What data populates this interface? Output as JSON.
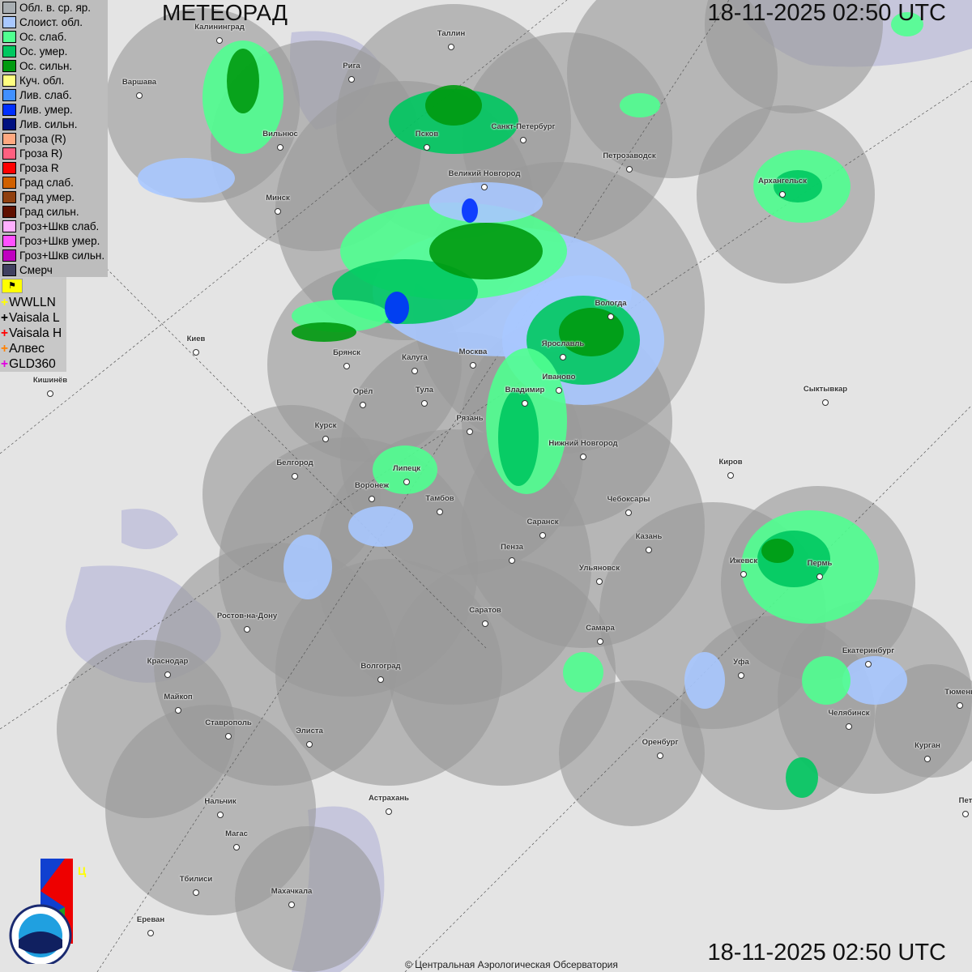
{
  "header": {
    "title": "МЕТЕОРАД",
    "time_top": "18-11-2025  02:50 UTC",
    "time_bottom": "18-11-2025  02:50 UTC"
  },
  "legend": [
    {
      "label": "Обл. в. ср. яр.",
      "color": "#a8aeb2"
    },
    {
      "label": "Слоист. обл.",
      "color": "#a8c8ff"
    },
    {
      "label": "Ос. слаб.",
      "color": "#50ff90"
    },
    {
      "label": "Ос. умер.",
      "color": "#00c860"
    },
    {
      "label": "Ос. сильн.",
      "color": "#009a10"
    },
    {
      "label": "Куч. обл.",
      "color": "#ffff80"
    },
    {
      "label": "Лив. слаб.",
      "color": "#4090ff"
    },
    {
      "label": "Лив. умер.",
      "color": "#0030ff"
    },
    {
      "label": "Лив. сильн.",
      "color": "#001080"
    },
    {
      "label": "Гроза (R)",
      "color": "#ffa880"
    },
    {
      "label": "Гроза R)",
      "color": "#ff6080"
    },
    {
      "label": "Гроза R",
      "color": "#ff0000"
    },
    {
      "label": "Град слаб.",
      "color": "#d06000"
    },
    {
      "label": "Град умер.",
      "color": "#904010"
    },
    {
      "label": "Град сильн.",
      "color": "#601000"
    },
    {
      "label": "Гроз+Шкв слаб.",
      "color": "#ffb0ff"
    },
    {
      "label": "Гроз+Шкв умер.",
      "color": "#ff50ff"
    },
    {
      "label": "Гроз+Шкв сильн.",
      "color": "#c000c0"
    },
    {
      "label": "Смерч",
      "color": "#404060"
    }
  ],
  "lightning": {
    "toggle_icon": "flag-icon",
    "sources": [
      {
        "label": "WWLLN",
        "color": "#ffff00"
      },
      {
        "label": "Vaisala L",
        "color": "#000000"
      },
      {
        "label": "Vaisala H",
        "color": "#ff0000"
      },
      {
        "label": "Алвес",
        "color": "#ff8000"
      },
      {
        "label": "GLD360",
        "color": "#e000e0"
      }
    ]
  },
  "cities": [
    "Калининград",
    "Таллин",
    "Рига",
    "Варшава",
    "Псков",
    "Санкт-Петербург",
    "Вильнюс",
    "Петрозаводск",
    "Великий Новгород",
    "Архангельск",
    "Минск",
    "Вологда",
    "Киев",
    "Брянск",
    "Калуга",
    "Москва",
    "Ярославль",
    "Иваново",
    "Кишинёв",
    "Орёл",
    "Тула",
    "Владимир",
    "Сыктывкар",
    "Курск",
    "Рязань",
    "Нижний Новгород",
    "Киров",
    "Белгород",
    "Липецк",
    "Воронеж",
    "Тамбов",
    "Чебоксары",
    "Саранск",
    "Казань",
    "Пенза",
    "Ижевск",
    "Пермь",
    "Ульяновск",
    "Ростов-на-Дону",
    "Саратов",
    "Самара",
    "Краснодар",
    "Екатеринбург",
    "Уфа",
    "Волгоград",
    "Майкоп",
    "Тюмень",
    "Челябинск",
    "Ставрополь",
    "Элиста",
    "Оренбург",
    "Курган",
    "Астрахань",
    "Нальчик",
    "Магас",
    "Тбилиси",
    "Махачкала",
    "Ереван",
    "Пет"
  ],
  "logos": {
    "tsao": "ЦАО 1941",
    "roshydromet": "РОСГИДРОМЕТ ROSHYDROMET"
  },
  "copyright": "© Центральная Аэрологическая Обсерватория"
}
